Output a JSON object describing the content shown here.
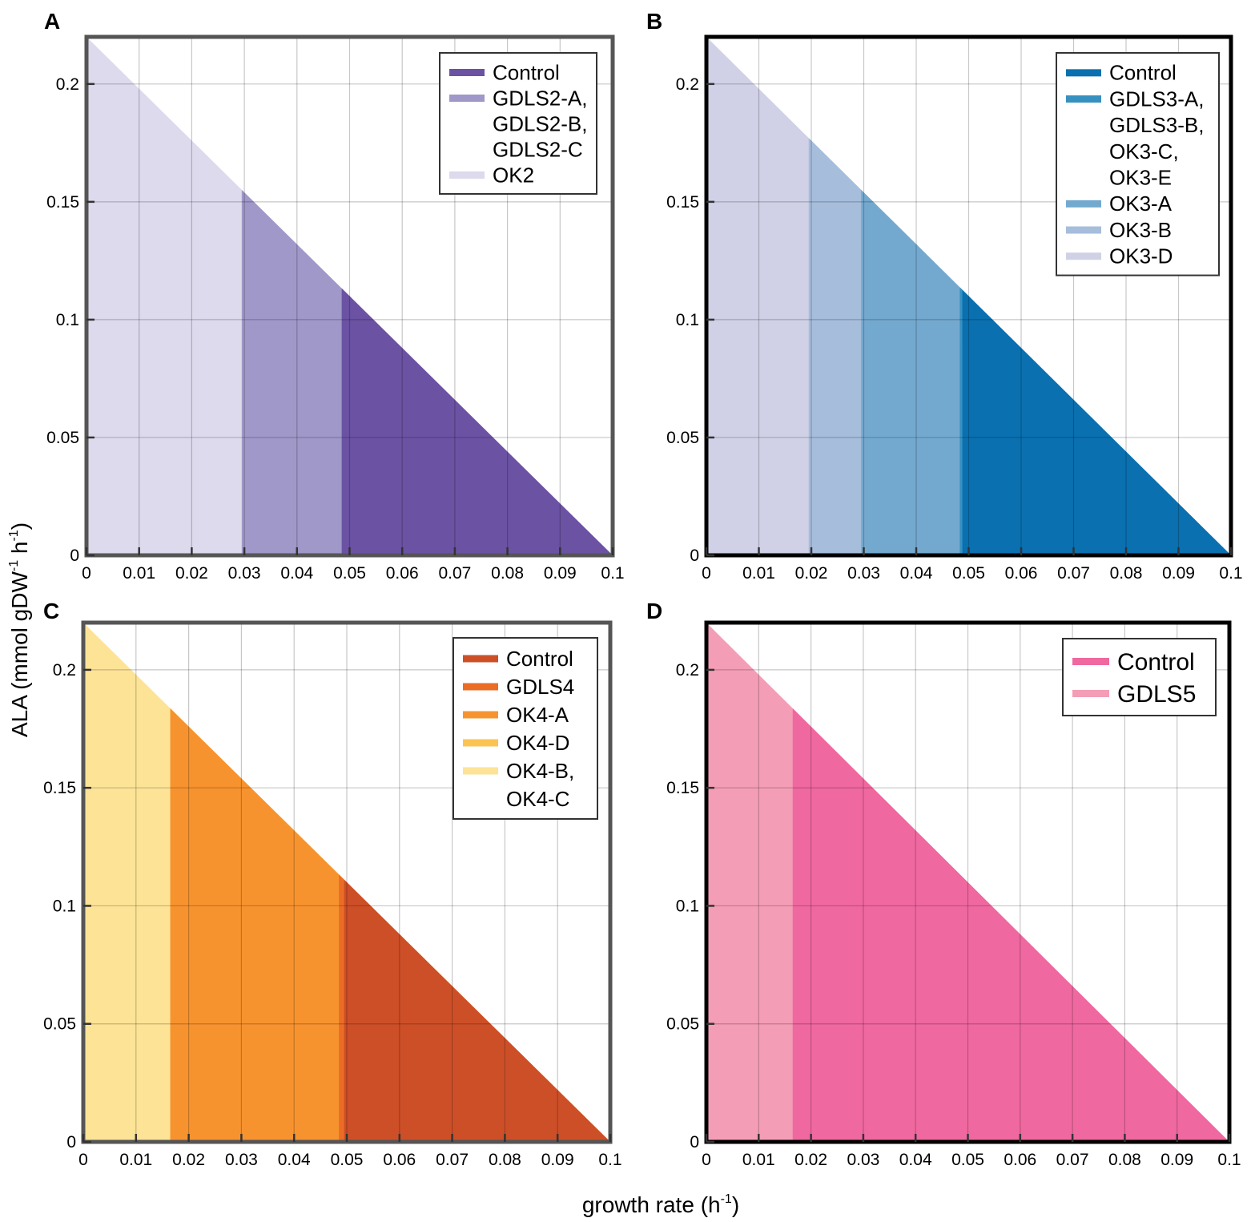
{
  "figure": {
    "xlabel_main": "growth rate (h",
    "xlabel_sup": "-1",
    "xlabel_end": ")",
    "ylabel_main": "ALA (mmol gDW",
    "ylabel_sup1": "-1",
    "ylabel_mid": " h",
    "ylabel_sup2": "-1",
    "ylabel_end": ")"
  },
  "chart_data": [
    {
      "panel": "A",
      "type": "area",
      "xlim": [
        0,
        0.1
      ],
      "ylim": [
        0,
        0.22
      ],
      "line": {
        "x0": 0,
        "y0": 0.22,
        "x1": 0.1,
        "y1": 0
      },
      "xticks": [
        "0",
        "0.01",
        "0.02",
        "0.03",
        "0.04",
        "0.05",
        "0.06",
        "0.07",
        "0.08",
        "0.09",
        "0.1"
      ],
      "yticks": [
        "0",
        "0.05",
        "0.1",
        "0.15",
        "0.2"
      ],
      "grid": true,
      "frame_color": "#555555",
      "legend_position": "top-right",
      "series": [
        {
          "name": "OK2",
          "x_start": 0,
          "x_end": 0.1,
          "color": "#dcdaec",
          "legend_lines": [
            "OK2"
          ]
        },
        {
          "name": "GDLS2-A, GDLS2-B, GDLS2-C",
          "x_start": 0.0295,
          "x_end": 0.1,
          "color": "#9f98c8",
          "legend_lines": [
            "GDLS2-A,",
            "GDLS2-B,",
            "GDLS2-C"
          ]
        },
        {
          "name": "Control",
          "x_start": 0.0485,
          "x_end": 0.1,
          "color": "#6b52a3",
          "legend_lines": [
            "Control"
          ]
        }
      ],
      "legend_order": [
        2,
        1,
        0
      ]
    },
    {
      "panel": "B",
      "type": "area",
      "xlim": [
        0,
        0.1
      ],
      "ylim": [
        0,
        0.22
      ],
      "line": {
        "x0": 0,
        "y0": 0.22,
        "x1": 0.1,
        "y1": 0
      },
      "xticks": [
        "0",
        "0.01",
        "0.02",
        "0.03",
        "0.04",
        "0.05",
        "0.06",
        "0.07",
        "0.08",
        "0.09",
        "0.1"
      ],
      "yticks": [
        "0",
        "0.05",
        "0.1",
        "0.15",
        "0.2"
      ],
      "grid": true,
      "frame_color": "#000000",
      "legend_position": "top-right",
      "series": [
        {
          "name": "OK3-D",
          "x_start": 0,
          "x_end": 0.1,
          "color": "#d0d1e6",
          "legend_lines": [
            "OK3-D"
          ]
        },
        {
          "name": "OK3-B",
          "x_start": 0.0195,
          "x_end": 0.1,
          "color": "#a6bddb",
          "legend_lines": [
            "OK3-B"
          ]
        },
        {
          "name": "OK3-A",
          "x_start": 0.0295,
          "x_end": 0.1,
          "color": "#74a9cf",
          "legend_lines": [
            "OK3-A"
          ]
        },
        {
          "name": "GDLS3-A, GDLS3-B, OK3-C, OK3-E",
          "x_start": 0.0483,
          "x_end": 0.1,
          "color": "#3690c0",
          "legend_lines": [
            "GDLS3-A,",
            "GDLS3-B,",
            "OK3-C,",
            "OK3-E"
          ]
        },
        {
          "name": "Control",
          "x_start": 0.0488,
          "x_end": 0.1,
          "color": "#0a70b0",
          "legend_lines": [
            "Control"
          ]
        }
      ],
      "legend_order": [
        4,
        3,
        2,
        1,
        0
      ]
    },
    {
      "panel": "C",
      "type": "area",
      "xlim": [
        0,
        0.1
      ],
      "ylim": [
        0,
        0.22
      ],
      "line": {
        "x0": 0,
        "y0": 0.22,
        "x1": 0.1,
        "y1": 0
      },
      "xticks": [
        "0",
        "0.01",
        "0.02",
        "0.03",
        "0.04",
        "0.05",
        "0.06",
        "0.07",
        "0.08",
        "0.09",
        "0.1"
      ],
      "yticks": [
        "0",
        "0.05",
        "0.1",
        "0.15",
        "0.2"
      ],
      "grid": true,
      "frame_color": "#555555",
      "legend_position": "top-right",
      "series": [
        {
          "name": "OK4-B, OK4-C",
          "x_start": 0,
          "x_end": 0.1,
          "color": "#fde396",
          "legend_lines": [
            "OK4-B,",
            "OK4-C"
          ]
        },
        {
          "name": "OK4-D",
          "x_start": 0.0165,
          "x_end": 0.1,
          "color": "#fdc352",
          "legend_lines": [
            "OK4-D"
          ]
        },
        {
          "name": "OK4-A",
          "x_start": 0.0165,
          "x_end": 0.1,
          "color": "#f7932f",
          "legend_lines": [
            "OK4-A"
          ]
        },
        {
          "name": "GDLS4",
          "x_start": 0.0485,
          "x_end": 0.1,
          "color": "#eb6c25",
          "legend_lines": [
            "GDLS4"
          ]
        },
        {
          "name": "Control",
          "x_start": 0.0495,
          "x_end": 0.1,
          "color": "#cd4f27",
          "legend_lines": [
            "Control"
          ]
        }
      ],
      "legend_order": [
        4,
        3,
        2,
        1,
        0
      ]
    },
    {
      "panel": "D",
      "type": "area",
      "xlim": [
        0,
        0.1
      ],
      "ylim": [
        0,
        0.22
      ],
      "line": {
        "x0": 0,
        "y0": 0.22,
        "x1": 0.1,
        "y1": 0
      },
      "xticks": [
        "0",
        "0.01",
        "0.02",
        "0.03",
        "0.04",
        "0.05",
        "0.06",
        "0.07",
        "0.08",
        "0.09",
        "0.1"
      ],
      "yticks": [
        "0",
        "0.05",
        "0.1",
        "0.15",
        "0.2"
      ],
      "grid": true,
      "frame_color": "#000000",
      "legend_position": "top-right",
      "series": [
        {
          "name": "GDLS5",
          "x_start": 0,
          "x_end": 0.1,
          "color": "#f49db6",
          "legend_lines": [
            "GDLS5"
          ]
        },
        {
          "name": "Control",
          "x_start": 0.0165,
          "x_end": 0.1,
          "color": "#ef689f",
          "legend_lines": [
            "Control"
          ]
        }
      ],
      "legend_order": [
        1,
        0
      ]
    }
  ]
}
